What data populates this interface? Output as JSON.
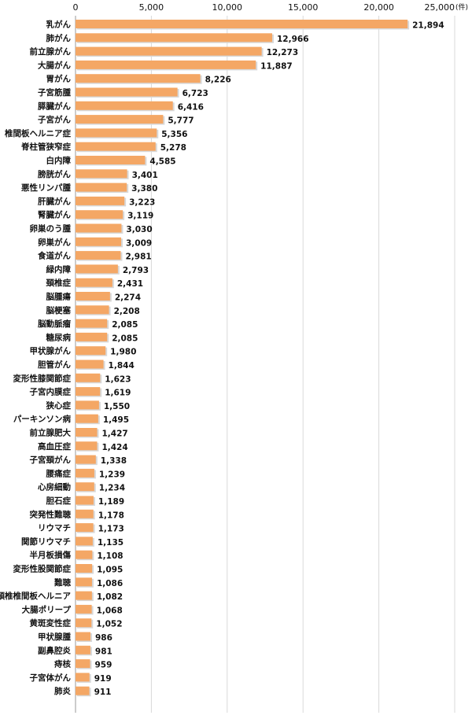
{
  "chart_data": {
    "type": "bar",
    "orientation": "horizontal",
    "unit": "(件)",
    "xlim": [
      0,
      25000
    ],
    "xticks": [
      0,
      5000,
      10000,
      15000,
      20000,
      25000
    ],
    "xtick_labels": [
      "0",
      "5,000",
      "10,000",
      "15,000",
      "20,000",
      "25,000"
    ],
    "grid": true,
    "bar_color": "#F4A765",
    "bar_shadow_color": "#D8D8D8",
    "categories": [
      "乳がん",
      "肺がん",
      "前立腺がん",
      "大腸がん",
      "胃がん",
      "子宮筋腫",
      "膵臓がん",
      "子宮がん",
      "椎間板ヘルニア症",
      "脊柱管狭窄症",
      "白内障",
      "膀胱がん",
      "悪性リンパ腫",
      "肝臓がん",
      "腎臓がん",
      "卵巣のう腫",
      "卵巣がん",
      "食道がん",
      "緑内障",
      "頚椎症",
      "脳腫瘍",
      "脳梗塞",
      "脳動脈瘤",
      "糖尿病",
      "甲状腺がん",
      "胆管がん",
      "変形性膝関節症",
      "子宮内膜症",
      "狭心症",
      "パーキンソン病",
      "前立腺肥大",
      "高血圧症",
      "子宮頚がん",
      "腰痛症",
      "心房細動",
      "胆石症",
      "突発性難聴",
      "リウマチ",
      "関節リウマチ",
      "半月板損傷",
      "変形性股関節症",
      "難聴",
      "頚椎椎間板ヘルニア",
      "大腸ポリープ",
      "黄斑変性症",
      "甲状腺腫",
      "副鼻腔炎",
      "痔核",
      "子宮体がん",
      "肺炎"
    ],
    "values": [
      21894,
      12966,
      12273,
      11887,
      8226,
      6723,
      6416,
      5777,
      5356,
      5278,
      4585,
      3401,
      3380,
      3223,
      3119,
      3030,
      3009,
      2981,
      2793,
      2431,
      2274,
      2208,
      2085,
      2085,
      1980,
      1844,
      1623,
      1619,
      1550,
      1495,
      1427,
      1424,
      1338,
      1239,
      1234,
      1189,
      1178,
      1173,
      1135,
      1108,
      1095,
      1086,
      1082,
      1068,
      1052,
      986,
      981,
      959,
      919,
      911
    ],
    "value_labels": [
      "21,894",
      "12,966",
      "12,273",
      "11,887",
      "8,226",
      "6,723",
      "6,416",
      "5,777",
      "5,356",
      "5,278",
      "4,585",
      "3,401",
      "3,380",
      "3,223",
      "3,119",
      "3,030",
      "3,009",
      "2,981",
      "2,793",
      "2,431",
      "2,274",
      "2,208",
      "2,085",
      "2,085",
      "1,980",
      "1,844",
      "1,623",
      "1,619",
      "1,550",
      "1,495",
      "1,427",
      "1,424",
      "1,338",
      "1,239",
      "1,234",
      "1,189",
      "1,178",
      "1,173",
      "1,135",
      "1,108",
      "1,095",
      "1,086",
      "1,082",
      "1,068",
      "1,052",
      "986",
      "981",
      "959",
      "919",
      "911"
    ]
  }
}
